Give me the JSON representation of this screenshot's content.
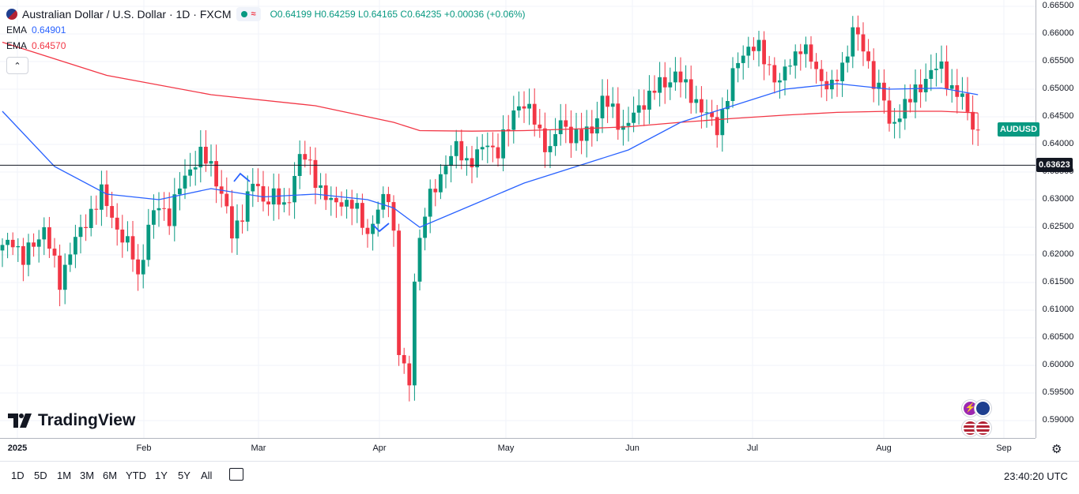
{
  "header": {
    "title": "Australian Dollar / U.S. Dollar · 1D · FXCM",
    "ohlc": {
      "open": "O0.64199",
      "high": "H0.64259",
      "low": "L0.64165",
      "close": "C0.64235",
      "change": "+0.00036 (+0.06%)"
    },
    "ema_label": "EMA",
    "ema1_value": "0.64901",
    "ema2_value": "0.64570"
  },
  "colors": {
    "up": "#089981",
    "down": "#f23645",
    "ema_fast": "#2962ff",
    "ema_slow": "#f23645",
    "hline": "#131722"
  },
  "chart_data": {
    "type": "candlestick",
    "title": "Australian Dollar / U.S. Dollar",
    "symbol": "AUDUSD",
    "ylim": [
      0.5865,
      0.665
    ],
    "y_ticks": [
      "0.66500",
      "0.66000",
      "0.65500",
      "0.65000",
      "0.64500",
      "0.64000",
      "0.63500",
      "0.63000",
      "0.62500",
      "0.62000",
      "0.61500",
      "0.61000",
      "0.60500",
      "0.60000",
      "0.59500",
      "0.59000"
    ],
    "x_ticks": [
      "2025",
      "Feb",
      "Mar",
      "Apr",
      "May",
      "Jun",
      "Jul",
      "Aug",
      "Sep"
    ],
    "last_price_label": "AUDUSD",
    "horizontal_line": {
      "value": 0.63623,
      "label": "0.63623"
    },
    "anchors": [
      [
        0,
        0.621
      ],
      [
        2,
        0.623
      ],
      [
        4,
        0.619
      ],
      [
        6,
        0.622
      ],
      [
        8,
        0.625
      ],
      [
        10,
        0.618
      ],
      [
        11,
        0.615
      ],
      [
        13,
        0.621
      ],
      [
        15,
        0.624
      ],
      [
        17,
        0.628
      ],
      [
        19,
        0.631
      ],
      [
        21,
        0.627
      ],
      [
        23,
        0.623
      ],
      [
        25,
        0.62
      ],
      [
        26,
        0.616
      ],
      [
        28,
        0.625
      ],
      [
        30,
        0.629
      ],
      [
        32,
        0.627
      ],
      [
        34,
        0.632
      ],
      [
        36,
        0.636
      ],
      [
        38,
        0.638
      ],
      [
        40,
        0.636
      ],
      [
        41,
        0.634
      ],
      [
        43,
        0.628
      ],
      [
        44,
        0.623
      ],
      [
        46,
        0.628
      ],
      [
        48,
        0.633
      ],
      [
        50,
        0.63
      ],
      [
        52,
        0.631
      ],
      [
        54,
        0.628
      ],
      [
        55,
        0.631
      ],
      [
        57,
        0.638
      ],
      [
        59,
        0.636
      ],
      [
        61,
        0.632
      ],
      [
        63,
        0.629
      ],
      [
        65,
        0.63
      ],
      [
        67,
        0.629
      ],
      [
        69,
        0.626
      ],
      [
        70,
        0.624
      ],
      [
        72,
        0.628
      ],
      [
        74,
        0.631
      ],
      [
        75,
        0.624
      ],
      [
        76,
        0.603
      ],
      [
        77,
        0.599
      ],
      [
        78,
        0.596
      ],
      [
        79,
        0.616
      ],
      [
        80,
        0.623
      ],
      [
        81,
        0.628
      ],
      [
        83,
        0.632
      ],
      [
        85,
        0.637
      ],
      [
        87,
        0.639
      ],
      [
        89,
        0.637
      ],
      [
        91,
        0.638
      ],
      [
        93,
        0.64
      ],
      [
        95,
        0.639
      ],
      [
        97,
        0.643
      ],
      [
        99,
        0.648
      ],
      [
        101,
        0.646
      ],
      [
        103,
        0.642
      ],
      [
        105,
        0.639
      ],
      [
        107,
        0.644
      ],
      [
        109,
        0.642
      ],
      [
        111,
        0.641
      ],
      [
        113,
        0.643
      ],
      [
        115,
        0.648
      ],
      [
        117,
        0.646
      ],
      [
        119,
        0.643
      ],
      [
        121,
        0.645
      ],
      [
        123,
        0.648
      ],
      [
        125,
        0.65
      ],
      [
        127,
        0.651
      ],
      [
        129,
        0.653
      ],
      [
        131,
        0.65
      ],
      [
        133,
        0.648
      ],
      [
        135,
        0.645
      ],
      [
        137,
        0.643
      ],
      [
        139,
        0.649
      ],
      [
        141,
        0.655
      ],
      [
        143,
        0.658
      ],
      [
        145,
        0.657
      ],
      [
        147,
        0.654
      ],
      [
        149,
        0.651
      ],
      [
        151,
        0.655
      ],
      [
        153,
        0.658
      ],
      [
        155,
        0.655
      ],
      [
        157,
        0.652
      ],
      [
        159,
        0.65
      ],
      [
        161,
        0.654
      ],
      [
        163,
        0.661
      ],
      [
        165,
        0.657
      ],
      [
        167,
        0.652
      ],
      [
        169,
        0.648
      ],
      [
        170,
        0.643
      ],
      [
        172,
        0.646
      ],
      [
        174,
        0.648
      ],
      [
        176,
        0.651
      ],
      [
        178,
        0.653
      ],
      [
        180,
        0.654
      ],
      [
        182,
        0.65
      ],
      [
        184,
        0.648
      ],
      [
        186,
        0.644
      ],
      [
        187,
        0.642
      ]
    ],
    "ema_fast": [
      [
        0,
        0.646
      ],
      [
        10,
        0.636
      ],
      [
        20,
        0.631
      ],
      [
        30,
        0.63
      ],
      [
        40,
        0.632
      ],
      [
        50,
        0.6305
      ],
      [
        60,
        0.631
      ],
      [
        70,
        0.63
      ],
      [
        75,
        0.6285
      ],
      [
        80,
        0.625
      ],
      [
        90,
        0.629
      ],
      [
        100,
        0.633
      ],
      [
        110,
        0.636
      ],
      [
        120,
        0.639
      ],
      [
        130,
        0.644
      ],
      [
        140,
        0.647
      ],
      [
        150,
        0.65
      ],
      [
        160,
        0.651
      ],
      [
        163,
        0.6507
      ],
      [
        170,
        0.65
      ],
      [
        180,
        0.6502
      ],
      [
        187,
        0.649
      ]
    ],
    "ema_slow": [
      [
        0,
        0.6585
      ],
      [
        20,
        0.6525
      ],
      [
        40,
        0.649
      ],
      [
        60,
        0.647
      ],
      [
        75,
        0.644
      ],
      [
        80,
        0.6425
      ],
      [
        90,
        0.6424
      ],
      [
        100,
        0.6425
      ],
      [
        110,
        0.6428
      ],
      [
        120,
        0.6432
      ],
      [
        130,
        0.644
      ],
      [
        140,
        0.6447
      ],
      [
        150,
        0.6453
      ],
      [
        160,
        0.6458
      ],
      [
        170,
        0.646
      ],
      [
        180,
        0.646
      ],
      [
        187,
        0.6457
      ]
    ]
  },
  "price_axis": {
    "last_tag": "AUDUSD",
    "hline_tag": "0.63623"
  },
  "time_axis": {
    "settings_icon": "gear-icon"
  },
  "bottom_bar": {
    "ranges": [
      "1D",
      "5D",
      "1M",
      "3M",
      "6M",
      "YTD",
      "1Y",
      "5Y",
      "All"
    ],
    "calendar_icon": "calendar-icon",
    "clock": "23:40:20 UTC"
  },
  "branding": {
    "logo_text": "TradingView"
  }
}
